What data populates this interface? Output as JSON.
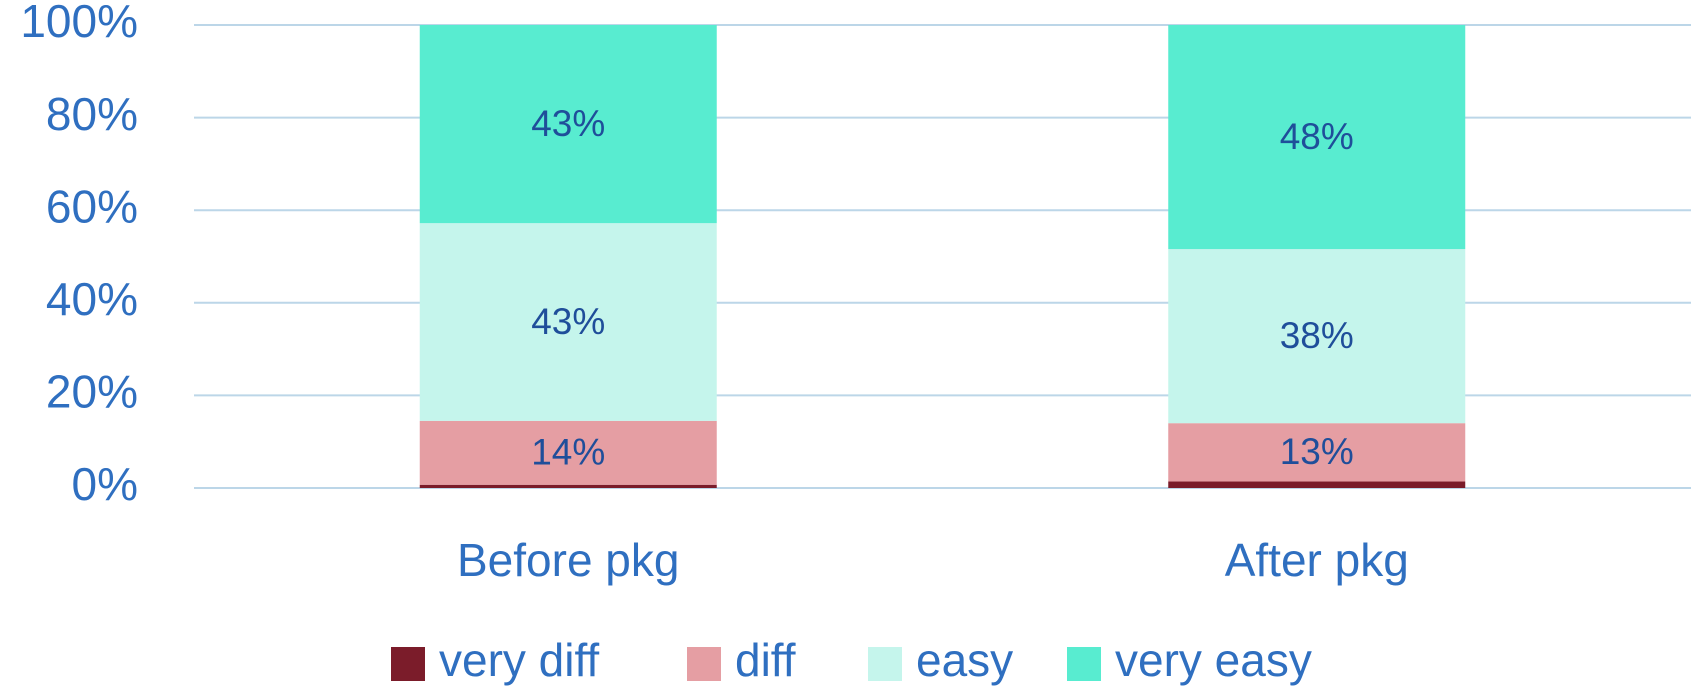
{
  "chart_data": {
    "type": "stacked_bar",
    "categories": [
      "Before pkg",
      "After pkg"
    ],
    "series": [
      {
        "name": "very diff",
        "color": "#7b1c2a",
        "values": [
          0.7,
          1.4
        ]
      },
      {
        "name": "diff",
        "color": "#e59ea3",
        "values": [
          13.8,
          12.6
        ],
        "value_labels": [
          "14%",
          "13%"
        ]
      },
      {
        "name": "easy",
        "color": "#c5f5ec",
        "values": [
          42.7,
          37.6
        ],
        "value_labels": [
          "43%",
          "38%"
        ]
      },
      {
        "name": "very easy",
        "color": "#58ecd0",
        "values": [
          42.8,
          48.4
        ],
        "value_labels": [
          "43%",
          "48%"
        ]
      }
    ],
    "ylim": [
      0,
      100
    ],
    "yticks": [
      {
        "value": 0,
        "label": "0%"
      },
      {
        "value": 20,
        "label": "20%"
      },
      {
        "value": 40,
        "label": "40%"
      },
      {
        "value": 60,
        "label": "60%"
      },
      {
        "value": 80,
        "label": "80%"
      },
      {
        "value": 100,
        "label": "100%"
      }
    ],
    "grid": true,
    "legend": "bottom"
  }
}
